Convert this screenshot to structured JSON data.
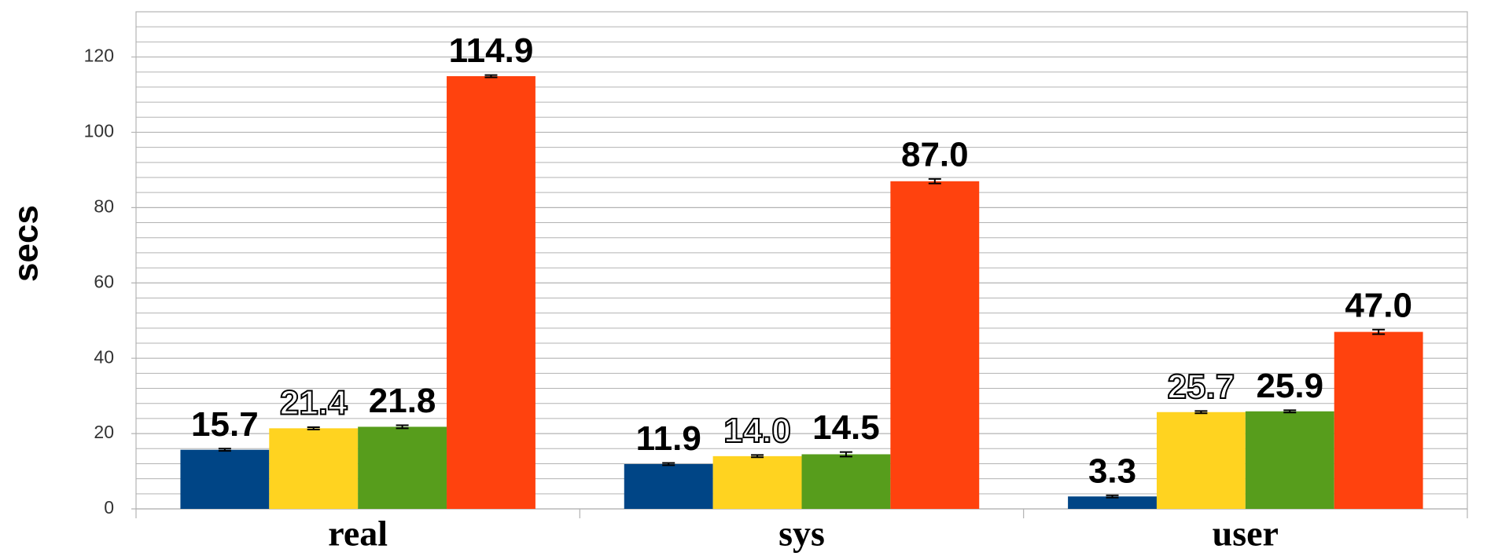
{
  "chart_data": {
    "type": "bar",
    "y_label": "secs",
    "categories": [
      "real",
      "sys",
      "user"
    ],
    "series": [
      {
        "color": "#004586",
        "values": [
          15.7,
          11.9,
          3.3
        ],
        "errors": [
          0.3,
          0.3,
          0.3
        ],
        "outlined_labels": false
      },
      {
        "color": "#ffd320",
        "values": [
          21.4,
          14.0,
          25.7
        ],
        "value_labels": [
          "21.4",
          "14.0",
          "25.7"
        ],
        "errors": [
          0.3,
          0.3,
          0.3
        ],
        "outlined_labels": true
      },
      {
        "color": "#579d1c",
        "values": [
          21.8,
          14.5,
          25.9
        ],
        "errors": [
          0.4,
          0.6,
          0.3
        ],
        "outlined_labels": false
      },
      {
        "color": "#ff420e",
        "values": [
          114.9,
          87.0,
          47.0
        ],
        "value_labels": [
          "114.9",
          "87.0",
          "47.0"
        ],
        "errors": [
          0.3,
          0.6,
          0.6
        ],
        "outlined_labels": false
      }
    ],
    "ylim": [
      0,
      132
    ],
    "yticks": [
      0,
      20,
      40,
      60,
      80,
      100,
      120
    ],
    "minor_yticks": [
      4,
      8,
      12,
      16,
      24,
      28,
      32,
      36,
      44,
      48,
      52,
      56,
      64,
      68,
      72,
      76,
      84,
      88,
      92,
      96,
      104,
      108,
      112,
      116,
      124,
      128,
      132
    ],
    "grid": true
  }
}
